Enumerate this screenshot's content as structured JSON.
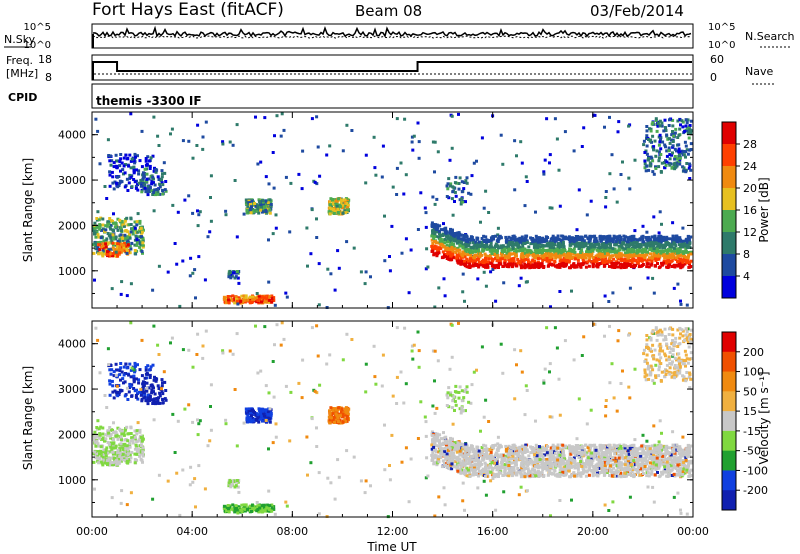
{
  "header": {
    "station": "Fort Hays East (fitACF)",
    "beam": "Beam 08",
    "date": "03/Feb/2014"
  },
  "top_panels": {
    "nsky_label": "N.Sky",
    "nsearch_label": "N.Search",
    "freq_label_line1": "Freq.",
    "freq_label_line2": "[MHz]",
    "nave_label": "Nave",
    "cpid_label": "CPID",
    "cpid_text": "themis -3300 IF",
    "noise_ticks": [
      "10^5",
      "10^0"
    ],
    "freq_ticks": [
      "18",
      "8"
    ],
    "nave_ticks": [
      "60",
      "0"
    ]
  },
  "chart_data": [
    {
      "type": "heatmap",
      "name": "power",
      "ylabel": "Slant Range [km]",
      "xlabel": "",
      "yticks": [
        "4000",
        "3000",
        "2000",
        "1000"
      ],
      "ylim": [
        180,
        4500
      ],
      "colorbar": {
        "label": "Power [dB]",
        "ticks": [
          "28",
          "24",
          "20",
          "16",
          "12",
          "8",
          "4"
        ],
        "colors": [
          "#0000dd",
          "#1e4aa0",
          "#2e7a6a",
          "#4caa50",
          "#e7c020",
          "#f08a10",
          "#ff4000",
          "#e00000"
        ],
        "range": [
          0,
          32
        ]
      }
    },
    {
      "type": "heatmap",
      "name": "velocity",
      "ylabel": "Slant Range [km]",
      "xlabel": "Time UT",
      "yticks": [
        "4000",
        "3000",
        "2000",
        "1000"
      ],
      "ylim": [
        180,
        4500
      ],
      "xticks": [
        "00:00",
        "04:00",
        "08:00",
        "12:00",
        "16:00",
        "20:00",
        "00:00"
      ],
      "colorbar": {
        "label": "Velocity [m s⁻¹]",
        "ticks": [
          "200",
          "100",
          "50",
          "15",
          "-15",
          "-50",
          "-100",
          "-200"
        ],
        "colors": [
          "#1020b0",
          "#1040e0",
          "#20a030",
          "#80d840",
          "#c8c8c8",
          "#f0b040",
          "#f08a10",
          "#f05000",
          "#e00000"
        ]
      }
    }
  ]
}
